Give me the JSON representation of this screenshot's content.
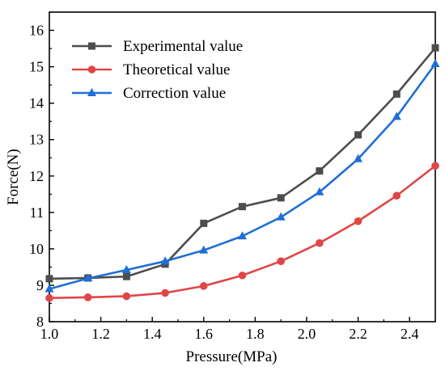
{
  "chart_data": {
    "type": "line",
    "title": "",
    "xlabel": "Pressure(MPa)",
    "ylabel": "Force(N)",
    "xlim": [
      1.0,
      2.5
    ],
    "ylim": [
      8,
      16.5
    ],
    "x_ticks": [
      1.0,
      1.2,
      1.4,
      1.6,
      1.8,
      2.0,
      2.2,
      2.4
    ],
    "x_tick_labels": [
      "1.0",
      "1.2",
      "1.4",
      "1.6",
      "1.8",
      "2.0",
      "2.2",
      "2.4"
    ],
    "y_ticks": [
      8,
      9,
      10,
      11,
      12,
      13,
      14,
      15,
      16
    ],
    "y_tick_labels": [
      "8",
      "9",
      "10",
      "11",
      "12",
      "13",
      "14",
      "15",
      "16"
    ],
    "grid": false,
    "legend_position": "top-left",
    "x": [
      1.0,
      1.15,
      1.3,
      1.45,
      1.6,
      1.75,
      1.9,
      2.05,
      2.2,
      2.35,
      2.5
    ],
    "series": [
      {
        "name": "Experimental value",
        "color": "#4d4d4d",
        "marker": "square",
        "values": [
          9.18,
          9.2,
          9.24,
          9.58,
          10.7,
          11.16,
          11.4,
          12.14,
          13.13,
          14.25,
          15.52
        ]
      },
      {
        "name": "Theoretical value",
        "color": "#e04646",
        "marker": "circle",
        "values": [
          8.65,
          8.67,
          8.7,
          8.79,
          8.98,
          9.27,
          9.66,
          10.16,
          10.76,
          11.46,
          12.28
        ]
      },
      {
        "name": "Correction value",
        "color": "#1f6fd6",
        "marker": "triangle",
        "values": [
          8.9,
          9.19,
          9.42,
          9.66,
          9.96,
          10.35,
          10.87,
          11.56,
          12.47,
          13.63,
          15.08
        ]
      }
    ]
  }
}
